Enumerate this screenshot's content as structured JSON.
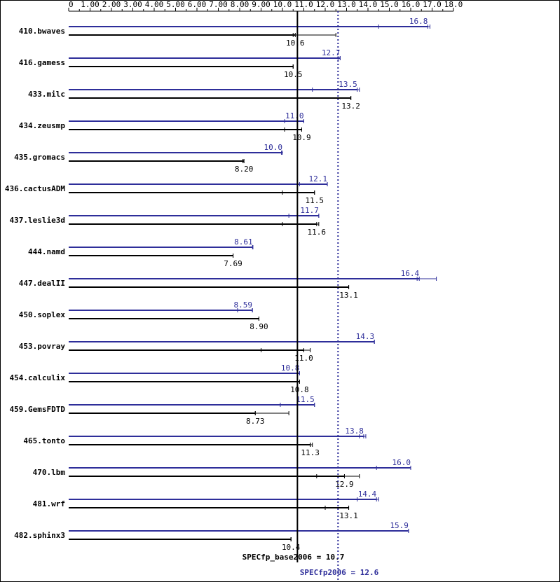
{
  "chart_data": {
    "type": "bar",
    "orientation": "horizontal",
    "xlim": [
      0,
      18.0
    ],
    "tick_labels": [
      "0",
      "1.00",
      "2.00",
      "3.00",
      "4.00",
      "5.00",
      "6.00",
      "7.00",
      "8.00",
      "9.00",
      "10.0",
      "11.0",
      "12.0",
      "13.0",
      "14.0",
      "15.0",
      "16.0",
      "17.0",
      "18.0"
    ],
    "colors": {
      "peak": "#2e2e9a",
      "base": "#000000"
    },
    "benchmarks": [
      {
        "name": "410.bwaves",
        "peak": 16.8,
        "peak_label": "16.8",
        "peak_runs": [
          14.5,
          16.8,
          16.9
        ],
        "base": 10.6,
        "base_label": "10.6",
        "base_runs": [
          10.5,
          10.6,
          12.5
        ]
      },
      {
        "name": "416.gamess",
        "peak": 12.7,
        "peak_label": "12.7",
        "peak_runs": [
          12.6,
          12.7,
          12.7
        ],
        "base": 10.5,
        "base_label": "10.5",
        "base_runs": [
          10.5,
          10.5,
          10.5
        ]
      },
      {
        "name": "433.milc",
        "peak": 13.5,
        "peak_label": "13.5",
        "peak_runs": [
          11.4,
          13.5,
          13.6
        ],
        "base": 13.2,
        "base_label": "13.2",
        "base_runs": [
          13.2,
          13.2,
          13.2
        ]
      },
      {
        "name": "434.zeusmp",
        "peak": 11.0,
        "peak_label": "11.0",
        "peak_runs": [
          10.1,
          11.0,
          11.0
        ],
        "base": 10.9,
        "base_label": "10.9",
        "base_runs": [
          10.1,
          10.9,
          10.9
        ]
      },
      {
        "name": "435.gromacs",
        "peak": 10.0,
        "peak_label": "10.0",
        "peak_runs": [
          9.95,
          10.0,
          10.0
        ],
        "base": 8.2,
        "base_label": "8.20",
        "base_runs": [
          8.15,
          8.2,
          8.2
        ]
      },
      {
        "name": "436.cactusADM",
        "peak": 12.1,
        "peak_label": "12.1",
        "peak_runs": [
          10.8,
          12.1,
          12.1
        ],
        "base": 11.5,
        "base_label": "11.5",
        "base_runs": [
          10.0,
          11.5,
          11.5
        ]
      },
      {
        "name": "437.leslie3d",
        "peak": 11.7,
        "peak_label": "11.7",
        "peak_runs": [
          10.3,
          11.7,
          11.7
        ],
        "base": 11.6,
        "base_label": "11.6",
        "base_runs": [
          10.0,
          11.6,
          11.7
        ]
      },
      {
        "name": "444.namd",
        "peak": 8.61,
        "peak_label": "8.61",
        "peak_runs": [
          8.6,
          8.61,
          8.62
        ],
        "base": 7.69,
        "base_label": "7.69",
        "base_runs": [
          7.69,
          7.69,
          7.69
        ]
      },
      {
        "name": "447.dealII",
        "peak": 16.4,
        "peak_label": "16.4",
        "peak_runs": [
          16.3,
          16.4,
          17.2
        ],
        "base": 13.1,
        "base_label": "13.1",
        "base_runs": [
          13.1,
          13.1,
          13.1
        ]
      },
      {
        "name": "450.soplex",
        "peak": 8.59,
        "peak_label": "8.59",
        "peak_runs": [
          7.9,
          8.59,
          8.6
        ],
        "base": 8.9,
        "base_label": "8.90",
        "base_runs": [
          8.9,
          8.9,
          8.9
        ]
      },
      {
        "name": "453.povray",
        "peak": 14.3,
        "peak_label": "14.3",
        "peak_runs": [
          14.3,
          14.3,
          14.3
        ],
        "base": 11.0,
        "base_label": "11.0",
        "base_runs": [
          9.0,
          11.0,
          11.3
        ]
      },
      {
        "name": "454.calculix",
        "peak": 10.8,
        "peak_label": "10.8",
        "peak_runs": [
          10.8,
          10.8,
          10.8
        ],
        "base": 10.8,
        "base_label": "10.8",
        "base_runs": [
          10.7,
          10.8,
          10.8
        ]
      },
      {
        "name": "459.GemsFDTD",
        "peak": 11.5,
        "peak_label": "11.5",
        "peak_runs": [
          9.9,
          11.5,
          11.5
        ],
        "base": 8.73,
        "base_label": "8.73",
        "base_runs": [
          8.73,
          8.73,
          10.3
        ]
      },
      {
        "name": "465.tonto",
        "peak": 13.8,
        "peak_label": "13.8",
        "peak_runs": [
          13.6,
          13.8,
          13.9
        ],
        "base": 11.3,
        "base_label": "11.3",
        "base_runs": [
          11.3,
          11.3,
          11.4
        ]
      },
      {
        "name": "470.lbm",
        "peak": 16.0,
        "peak_label": "16.0",
        "peak_runs": [
          14.4,
          16.0,
          16.0
        ],
        "base": 12.9,
        "base_label": "12.9",
        "base_runs": [
          11.6,
          12.9,
          13.6
        ]
      },
      {
        "name": "481.wrf",
        "peak": 14.4,
        "peak_label": "14.4",
        "peak_runs": [
          13.5,
          14.4,
          14.5
        ],
        "base": 13.1,
        "base_label": "13.1",
        "base_runs": [
          12.0,
          13.1,
          13.1
        ]
      },
      {
        "name": "482.sphinx3",
        "peak": 15.9,
        "peak_label": "15.9",
        "peak_runs": [
          15.9,
          15.9,
          15.9
        ],
        "base": 10.4,
        "base_label": "10.4",
        "base_runs": [
          10.4,
          10.4,
          10.4
        ]
      }
    ],
    "summary": {
      "base_label": "SPECfp_base2006 = 10.7",
      "base_value": 10.7,
      "peak_label": "SPECfp2006 = 12.6",
      "peak_value": 12.6
    }
  }
}
